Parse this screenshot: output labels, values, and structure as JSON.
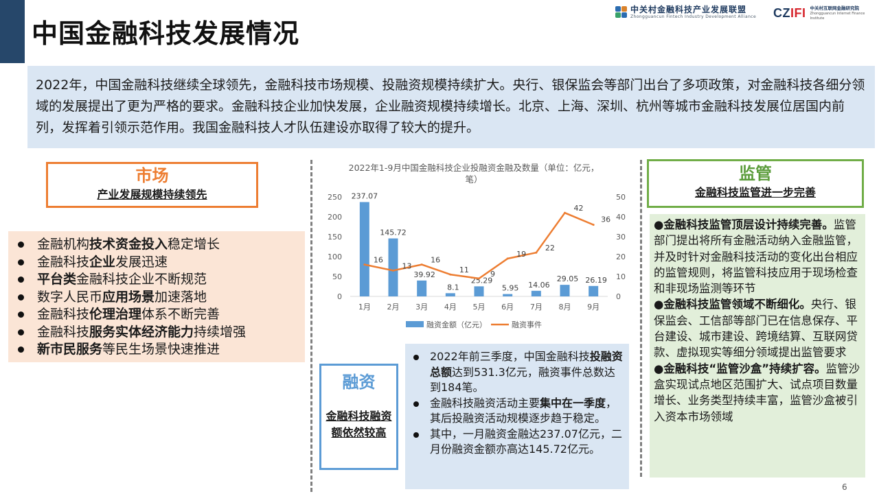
{
  "page": {
    "title": "中国金融科技发展情况",
    "page_number": "6"
  },
  "logos": {
    "zgc_cn": "中关村金融科技产业发展联盟",
    "zgc_en": "Zhongguancun Fintech Industry Development Alliance",
    "czifi_mark_a": "CZ",
    "czifi_mark_b": "IFI",
    "czifi_cn": "中关村互联网金融研究院",
    "czifi_en": "Zhongguancun Internet Finance Institute"
  },
  "intro": {
    "text": "2022年，中国金融科技继续全球领先，金融科技市场规模、投融资规模持续扩大。央行、银保监会等部门出台了多项政策，对金融科技各细分领域的发展提出了更为严格的要求。金融科技企业加快发展，企业融资规模持续增长。北京、上海、深圳、杭州等城市金融科技发展位居国内前列，发挥着引领示范作用。我国金融科技人才队伍建设亦取得了较大的提升。"
  },
  "market": {
    "title": "市场",
    "subtitle": "产业发展规模持续领先",
    "items": [
      {
        "pre": "金融机构",
        "bold": "技术资金投入",
        "post": "稳定增长"
      },
      {
        "pre": "金融科技",
        "bold": "企业",
        "post": "发展迅速"
      },
      {
        "pre": "",
        "bold": "平台类",
        "post": "金融科技企业不断规范"
      },
      {
        "pre": "数字人民币",
        "bold": "应用场景",
        "post": "加速落地"
      },
      {
        "pre": "金融科技",
        "bold": "伦理治理",
        "post": "体系不断完善"
      },
      {
        "pre": "金融科技",
        "bold": "服务实体经济能力",
        "post": "持续增强"
      },
      {
        "pre": "",
        "bold": "新市民服务",
        "post": "等民生场景快速推进"
      }
    ]
  },
  "chart_data": {
    "type": "bar",
    "title": "2022年1-9月中国金融科技企业投融资金融及数量（单位：亿元，笔）",
    "categories": [
      "1月",
      "2月",
      "3月",
      "4月",
      "5月",
      "6月",
      "7月",
      "8月",
      "9月"
    ],
    "series": [
      {
        "name": "融资金额（亿元）",
        "type": "bar",
        "axis": "left",
        "color": "#5b9bd5",
        "values": [
          237.07,
          145.72,
          39.92,
          8.1,
          25.29,
          5.95,
          14.06,
          29.05,
          26.19
        ],
        "labels": [
          "237.07",
          "145.72",
          "39.92",
          "8.1",
          "25.29",
          "5.95",
          "14.06",
          "29.05",
          "26.19"
        ]
      },
      {
        "name": "融资事件",
        "type": "line",
        "axis": "right",
        "color": "#ed7d31",
        "values": [
          16,
          13,
          16,
          11,
          9,
          19,
          22,
          42,
          36
        ],
        "labels": [
          "16",
          "13",
          "16",
          "11",
          "9",
          "19",
          "22",
          "42",
          "36"
        ]
      }
    ],
    "ylim_left": [
      0,
      250
    ],
    "yticks_left": [
      "0",
      "50",
      "100",
      "150",
      "200",
      "250"
    ],
    "ylim_right": [
      0,
      50
    ],
    "yticks_right": [
      "0",
      "10",
      "20",
      "30",
      "40",
      "50"
    ],
    "legend_position": "bottom",
    "grid": false
  },
  "finance": {
    "title": "融资",
    "subtitle": "金融科技融资额依然较高",
    "items": [
      {
        "pre": "2022年前三季度，中国金融科技",
        "bold": "投融资总额",
        "post": "达到531.3亿元，融资事件总数达到184笔。"
      },
      {
        "pre": "金融科技融资活动主要",
        "bold": "集中在一季度",
        "post": "，其后投融资活动规模逐步趋于稳定。"
      },
      {
        "pre": "其中，一月融资金融达237.07亿元，二月份融资金额亦高达145.72亿元。",
        "bold": "",
        "post": ""
      }
    ]
  },
  "regulation": {
    "title": "监管",
    "subtitle": "金融科技监管进一步完善",
    "paragraphs": [
      {
        "bold": "●金融科技监管顶层设计持续完善。",
        "text": "监管部门提出将所有金融活动纳入金融监管，并及时针对金融科技活动的变化出台相应的监管规则，将监管科技应用于现场检查和非现场监测等环节"
      },
      {
        "bold": "●金融科技监管领域不断细化。",
        "text": "央行、银保监会、工信部等部门已在信息保存、平台建设、城市建设、跨境结算、互联网贷款、虚拟现实等细分领域提出监管要求"
      },
      {
        "bold": "●金融科技“监管沙盒”持续扩容。",
        "text": "监管沙盒实现试点地区范围扩大、试点项目数量增长、业务类型持续丰富，监管沙盒被引入资本市场领域"
      }
    ]
  }
}
